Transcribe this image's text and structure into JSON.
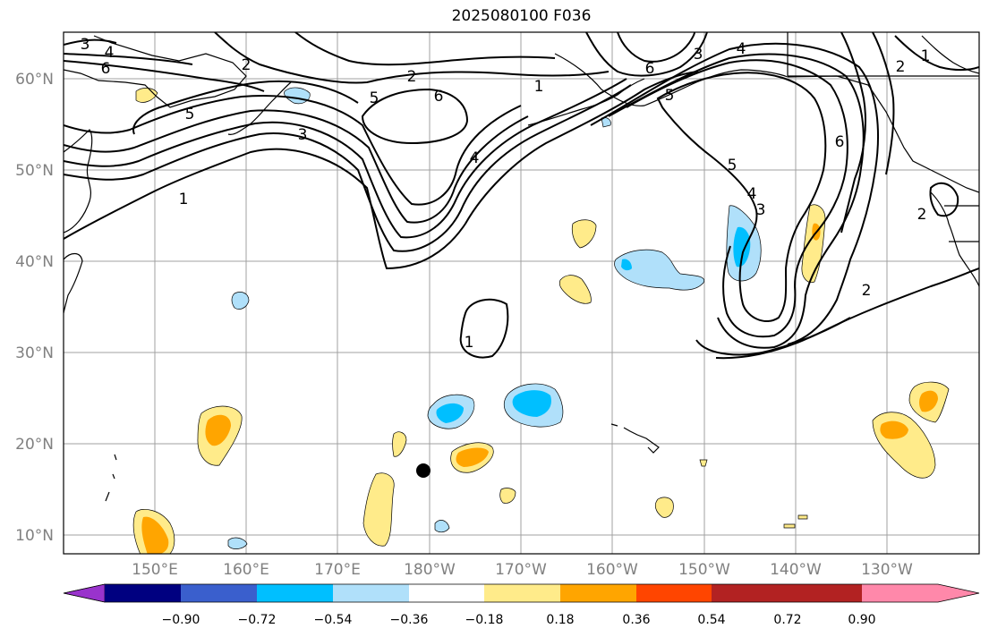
{
  "title": "2025080100 F036",
  "map": {
    "lat_labels": [
      "60°N",
      "50°N",
      "40°N",
      "30°N",
      "20°N",
      "10°N"
    ],
    "lon_labels": [
      "150°E",
      "160°E",
      "170°E",
      "180°W",
      "170°W",
      "160°W",
      "150°W",
      "140°W",
      "130°W"
    ],
    "grid": true,
    "contour_labels": [
      "3",
      "4",
      "6",
      "5",
      "1",
      "3",
      "2",
      "6",
      "5",
      "2",
      "1",
      "4",
      "6",
      "5",
      "3",
      "4",
      "5",
      "4",
      "3",
      "6",
      "2",
      "1",
      "2",
      "1",
      "2"
    ],
    "marker": "storm-center-dot"
  },
  "colorbar": {
    "tick_labels": [
      "−0.90",
      "−0.72",
      "−0.54",
      "−0.36",
      "−0.18",
      "0.18",
      "0.36",
      "0.54",
      "0.72",
      "0.90"
    ],
    "colors": [
      "#9933cc",
      "#000080",
      "#3a5fcd",
      "#00bfff",
      "#b0e0fa",
      "#ffffff",
      "#ffeb8a",
      "#ffa500",
      "#ff4500",
      "#b22222",
      "#ff88aa"
    ],
    "extend": "both"
  }
}
